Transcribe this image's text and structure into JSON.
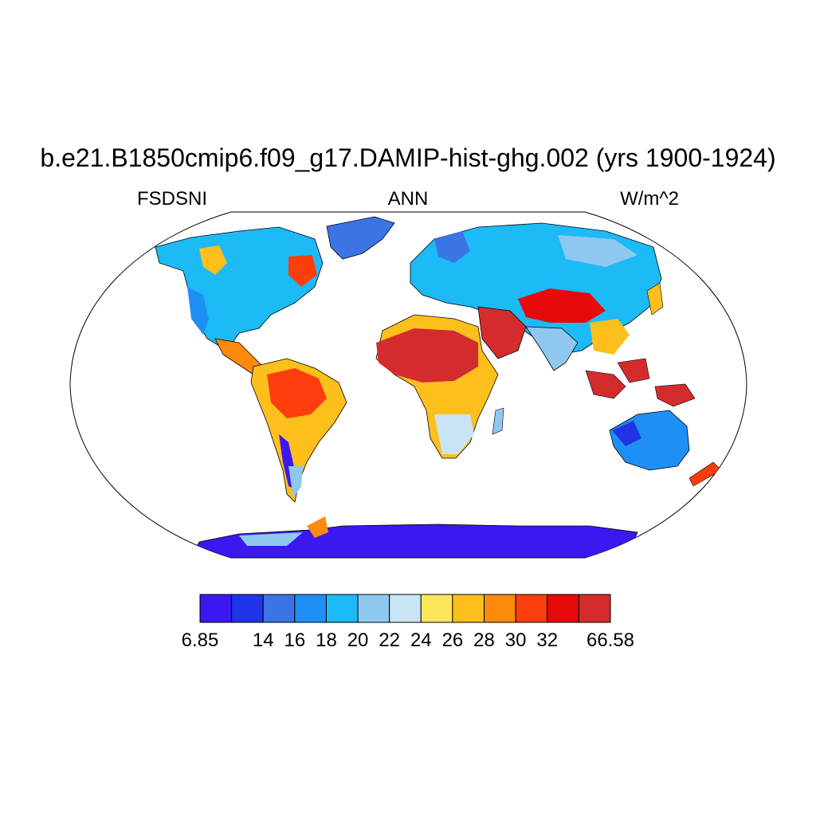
{
  "title": "b.e21.B1850cmip6.f09_g17.DAMIP-hist-ghg.002 (yrs 1900-1924)",
  "variable": "FSDSNI",
  "period": "ANN",
  "units": "W/m^2",
  "colorbar": {
    "colors": [
      "#3b18ef",
      "#1f34e6",
      "#3b75e5",
      "#1e90f5",
      "#1cbaf7",
      "#8ec8ef",
      "#c9e5f5",
      "#fde65c",
      "#fdbf1c",
      "#fc8a0c",
      "#fb3e0c",
      "#e80a0a",
      "#d42c2c"
    ],
    "tick_labels": [
      "6.85",
      "14",
      "16",
      "18",
      "20",
      "22",
      "24",
      "26",
      "28",
      "30",
      "32",
      "66.58"
    ]
  },
  "map": {
    "projection": "robinson",
    "regions": [
      {
        "name": "sahara-arabia",
        "level": 12
      },
      {
        "name": "central-asia",
        "level": 11
      },
      {
        "name": "indonesia",
        "level": 12
      },
      {
        "name": "amazon",
        "level": 9
      },
      {
        "name": "southern-africa",
        "level": 8
      },
      {
        "name": "antarctica",
        "level": 0
      },
      {
        "name": "australia",
        "level": 3
      },
      {
        "name": "north-america",
        "level": 4
      },
      {
        "name": "europe-siberia",
        "level": 4
      },
      {
        "name": "greenland",
        "level": 3
      }
    ]
  }
}
